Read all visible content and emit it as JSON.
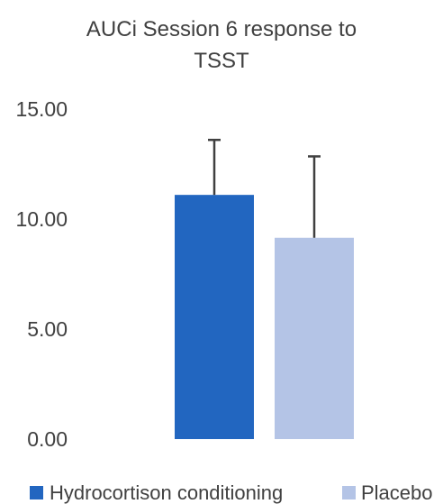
{
  "chart_data": {
    "type": "bar",
    "title_lines": [
      "AUCi Session 6 response to",
      "TSST"
    ],
    "xlabel": "",
    "ylabel": "",
    "ylim": [
      0,
      15
    ],
    "yticks": [
      "0.00",
      "5.00",
      "10.00",
      "15.00"
    ],
    "ytick_values": [
      0,
      5,
      10,
      15
    ],
    "grid": false,
    "legend_position": "bottom",
    "error_bar_color": "#404040",
    "series": [
      {
        "name": "Hydrocortison conditioning",
        "value": 11.1,
        "error_plus": 2.5,
        "color": "#2266c0"
      },
      {
        "name": "Placebo",
        "value": 9.15,
        "error_plus": 3.7,
        "color": "#b4c4e6"
      }
    ]
  }
}
